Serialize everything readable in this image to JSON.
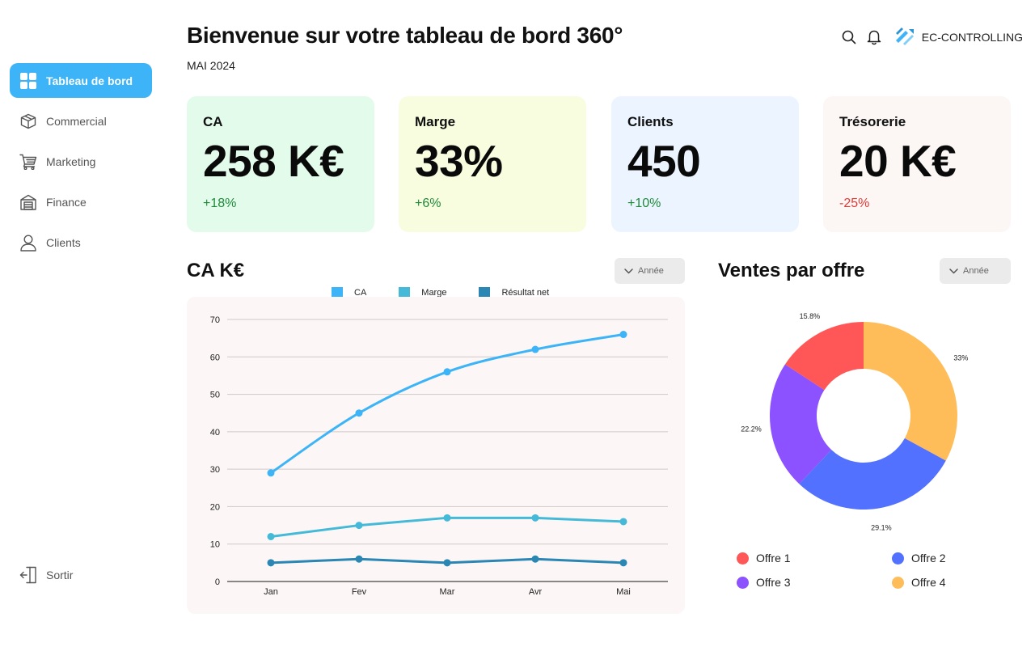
{
  "sidebar": {
    "items": [
      {
        "label": "Tableau de bord",
        "icon": "dashboard-icon",
        "active": true
      },
      {
        "label": "Commercial",
        "icon": "box-icon",
        "active": false
      },
      {
        "label": "Marketing",
        "icon": "cart-icon",
        "active": false
      },
      {
        "label": "Finance",
        "icon": "bank-icon",
        "active": false
      },
      {
        "label": "Clients",
        "icon": "user-icon",
        "active": false
      }
    ],
    "logout_label": "Sortir"
  },
  "header": {
    "title": "Bienvenue sur votre tableau de bord 360°",
    "period": "MAI 2024",
    "brand": "EC-CONTROLLING"
  },
  "kpis": [
    {
      "label": "CA",
      "value": "258 K€",
      "delta": "+18%",
      "trend": "up",
      "bg": "#e2fbea"
    },
    {
      "label": "Marge",
      "value": "33%",
      "delta": "+6%",
      "trend": "up",
      "bg": "#f9fde0"
    },
    {
      "label": "Clients",
      "value": "450",
      "delta": "+10%",
      "trend": "up",
      "bg": "#ebf4ff"
    },
    {
      "label": "Trésorerie",
      "value": "20 K€",
      "delta": "-25%",
      "trend": "down",
      "bg": "#fcf7f5"
    }
  ],
  "line_section": {
    "title": "CA K€",
    "filter_label": "Année"
  },
  "pie_section": {
    "title": "Ventes par offre",
    "filter_label": "Année"
  },
  "chart_data": [
    {
      "type": "line",
      "title": "CA K€",
      "categories": [
        "Jan",
        "Fev",
        "Mar",
        "Avr",
        "Mai"
      ],
      "ylim": [
        0,
        70
      ],
      "yticks": [
        0,
        10,
        20,
        30,
        40,
        50,
        60,
        70
      ],
      "grid": true,
      "legend": "top",
      "series": [
        {
          "name": "CA",
          "color": "#3db4f7",
          "values": [
            29,
            45,
            56,
            62,
            66
          ]
        },
        {
          "name": "Marge",
          "color": "#45b9d8",
          "values": [
            12,
            15,
            17,
            17,
            16
          ]
        },
        {
          "name": "Résultat net",
          "color": "#2b86b4",
          "values": [
            5,
            6,
            5,
            6,
            5
          ]
        }
      ]
    },
    {
      "type": "pie",
      "title": "Ventes par offre",
      "legend": "bottom",
      "slices": [
        {
          "name": "Offre 4",
          "label": "33%",
          "value": 33,
          "color": "#ffbd59"
        },
        {
          "name": "Offre 2",
          "label": "29.1%",
          "value": 29.1,
          "color": "#5271ff"
        },
        {
          "name": "Offre 3",
          "label": "22.2%",
          "value": 22.2,
          "color": "#8c52ff"
        },
        {
          "name": "Offre 1",
          "label": "15.8%",
          "value": 15.8,
          "color": "#ff5757"
        }
      ],
      "legend_items": [
        {
          "name": "Offre 1",
          "color": "#ff5757"
        },
        {
          "name": "Offre 2",
          "color": "#5271ff"
        },
        {
          "name": "Offre 3",
          "color": "#8c52ff"
        },
        {
          "name": "Offre 4",
          "color": "#ffbd59"
        }
      ]
    }
  ]
}
